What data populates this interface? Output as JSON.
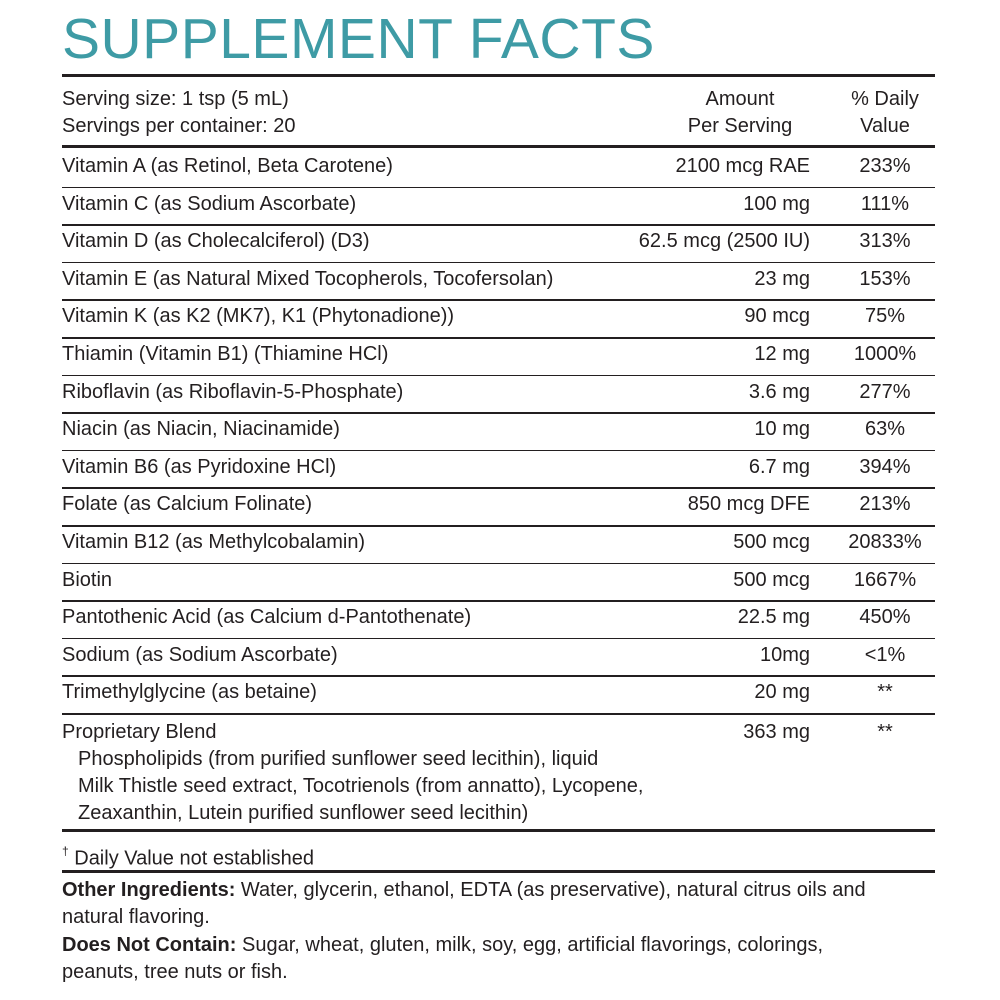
{
  "title": "SUPPLEMENT FACTS",
  "header": {
    "serving_size": "Serving size: 1 tsp (5 mL)",
    "servings_per_container": "Servings per container: 20",
    "amount_line1": "Amount",
    "amount_line2": "Per Serving",
    "dv_line1": "% Daily",
    "dv_line2": "Value"
  },
  "rows": [
    {
      "name": "Vitamin A (as Retinol, Beta Carotene)",
      "amount": "2100 mcg RAE",
      "dv": "233%"
    },
    {
      "name": "Vitamin C (as Sodium Ascorbate)",
      "amount": "100 mg",
      "dv": "111%"
    },
    {
      "name": "Vitamin D (as Cholecalciferol) (D3)",
      "amount": "62.5 mcg (2500 IU)",
      "dv": "313%"
    },
    {
      "name": "Vitamin E (as Natural Mixed Tocopherols, Tocofersolan)",
      "amount": "23 mg",
      "dv": "153%"
    },
    {
      "name": "Vitamin K (as K2 (MK7), K1 (Phytonadione))",
      "amount": "90 mcg",
      "dv": "75%"
    },
    {
      "name": "Thiamin (Vitamin B1) (Thiamine HCl)",
      "amount": "12 mg",
      "dv": "1000%"
    },
    {
      "name": "Riboflavin (as Riboflavin-5-Phosphate)",
      "amount": "3.6 mg",
      "dv": "277%"
    },
    {
      "name": "Niacin (as Niacin, Niacinamide)",
      "amount": "10 mg",
      "dv": "63%"
    },
    {
      "name": "Vitamin B6 (as Pyridoxine HCl)",
      "amount": "6.7 mg",
      "dv": "394%"
    },
    {
      "name": "Folate (as Calcium Folinate)",
      "amount": "850 mcg DFE",
      "dv": "213%"
    },
    {
      "name": "Vitamin B12 (as Methylcobalamin)",
      "amount": "500 mcg",
      "dv": "20833%"
    },
    {
      "name": "Biotin",
      "amount": "500 mcg",
      "dv": "1667%"
    },
    {
      "name": "Pantothenic Acid (as Calcium d-Pantothenate)",
      "amount": "22.5 mg",
      "dv": "450%"
    },
    {
      "name": "Sodium (as Sodium Ascorbate)",
      "amount": "10mg",
      "dv": "<1%"
    },
    {
      "name": "Trimethylglycine (as betaine)",
      "amount": "20 mg",
      "dv": "**"
    }
  ],
  "blend": {
    "name": "Proprietary Blend",
    "amount": "363 mg",
    "dv": "**",
    "lines": [
      "Phospholipids (from purified sunflower seed lecithin), liquid",
      "Milk Thistle seed extract, Tocotrienols (from annatto), Lycopene,",
      "Zeaxanthin, Lutein purified sunflower seed lecithin)"
    ]
  },
  "footnote": {
    "symbol": "†",
    "text": " Daily Value not established"
  },
  "other_ingredients": {
    "label": "Other Ingredients:",
    "line1": " Water, glycerin, ethanol, EDTA (as preservative), natural citrus oils and",
    "line2": "natural flavoring."
  },
  "does_not_contain": {
    "label": "Does Not Contain:",
    "line1": " Sugar, wheat, gluten, milk, soy, egg, artificial flavorings, colorings,",
    "line2": "peanuts, tree nuts or fish."
  },
  "colors": {
    "title": "#3e9ba5",
    "text": "#231f20"
  }
}
